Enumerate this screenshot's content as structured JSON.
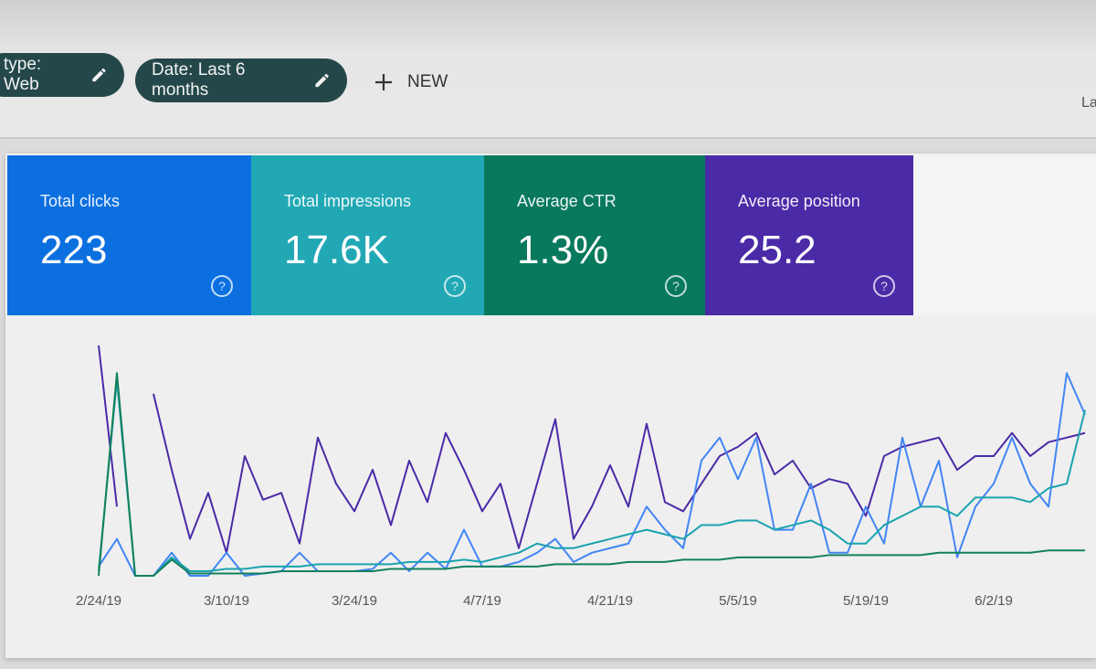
{
  "filters": [
    {
      "label": "type: Web",
      "icon": "pencil-icon"
    },
    {
      "label": "Date: Last 6 months",
      "icon": "pencil-icon"
    }
  ],
  "new_button": {
    "label": "NEW",
    "icon": "plus-icon"
  },
  "right_label": "La",
  "metrics": [
    {
      "label": "Total clicks",
      "value": "223",
      "color": "#0b6fe0"
    },
    {
      "label": "Total impressions",
      "value": "17.6K",
      "color": "#22a8b5"
    },
    {
      "label": "Average CTR",
      "value": "1.3%",
      "color": "#08795d"
    },
    {
      "label": "Average position",
      "value": "25.2",
      "color": "#4a2aa6"
    }
  ],
  "chart_data": {
    "type": "line",
    "x": [
      "2/24",
      "2/26",
      "2/28",
      "3/2",
      "3/4",
      "3/6",
      "3/8",
      "3/10",
      "3/12",
      "3/14",
      "3/16",
      "3/18",
      "3/20",
      "3/22",
      "3/24",
      "3/26",
      "3/28",
      "3/30",
      "4/1",
      "4/3",
      "4/5",
      "4/7",
      "4/9",
      "4/11",
      "4/13",
      "4/15",
      "4/17",
      "4/19",
      "4/21",
      "4/23",
      "4/25",
      "4/27",
      "4/29",
      "5/1",
      "5/3",
      "5/5",
      "5/7",
      "5/9",
      "5/11",
      "5/13",
      "5/15",
      "5/17",
      "5/19",
      "5/21",
      "5/23",
      "5/25",
      "5/27",
      "5/29",
      "5/31",
      "6/2",
      "6/4",
      "6/6",
      "6/8",
      "6/10",
      "6/12"
    ],
    "tick_labels": [
      "2/24/19",
      "3/10/19",
      "3/24/19",
      "4/7/19",
      "4/21/19",
      "5/5/19",
      "5/19/19",
      "6/2/19"
    ],
    "y_axis": "hidden, relative scale 0-100 per series",
    "grid": false,
    "series": [
      {
        "color": "#4a2aa6",
        "values": [
          100,
          30,
          null,
          79,
          46,
          16,
          36,
          10,
          52,
          33,
          36,
          14,
          60,
          40,
          28,
          46,
          22,
          50,
          32,
          62,
          46,
          28,
          40,
          12,
          40,
          68,
          16,
          30,
          48,
          30,
          66,
          32,
          28,
          40,
          52,
          56,
          62,
          44,
          50,
          38,
          42,
          40,
          26,
          52,
          56,
          58,
          60,
          46,
          52,
          52,
          62,
          52,
          58,
          60,
          62
        ]
      },
      {
        "color": "#4285f4",
        "values": [
          4,
          16,
          0,
          0,
          10,
          0,
          0,
          10,
          0,
          1,
          2,
          10,
          2,
          2,
          2,
          3,
          10,
          2,
          10,
          3,
          20,
          4,
          4,
          6,
          10,
          16,
          6,
          10,
          12,
          14,
          30,
          20,
          12,
          50,
          60,
          42,
          60,
          20,
          20,
          40,
          10,
          10,
          30,
          14,
          60,
          30,
          50,
          8,
          30,
          40,
          60,
          40,
          30,
          88,
          70
        ]
      },
      {
        "color": "#1aa3ae",
        "values": [
          2,
          85,
          0,
          0,
          8,
          2,
          2,
          3,
          3,
          4,
          4,
          4,
          5,
          5,
          5,
          5,
          5,
          6,
          6,
          6,
          7,
          6,
          8,
          10,
          14,
          12,
          12,
          14,
          16,
          18,
          20,
          18,
          16,
          22,
          22,
          24,
          24,
          20,
          22,
          24,
          20,
          14,
          14,
          22,
          26,
          30,
          30,
          26,
          34,
          34,
          34,
          32,
          38,
          40,
          72
        ]
      },
      {
        "color": "#12805c",
        "values": [
          0,
          88,
          0,
          0,
          7,
          1,
          1,
          1,
          1,
          1,
          2,
          2,
          2,
          2,
          2,
          2,
          3,
          3,
          3,
          3,
          4,
          4,
          4,
          4,
          4,
          5,
          5,
          5,
          5,
          6,
          6,
          6,
          7,
          7,
          7,
          8,
          8,
          8,
          8,
          8,
          9,
          9,
          9,
          9,
          9,
          9,
          10,
          10,
          10,
          10,
          10,
          10,
          11,
          11,
          11
        ]
      }
    ]
  }
}
